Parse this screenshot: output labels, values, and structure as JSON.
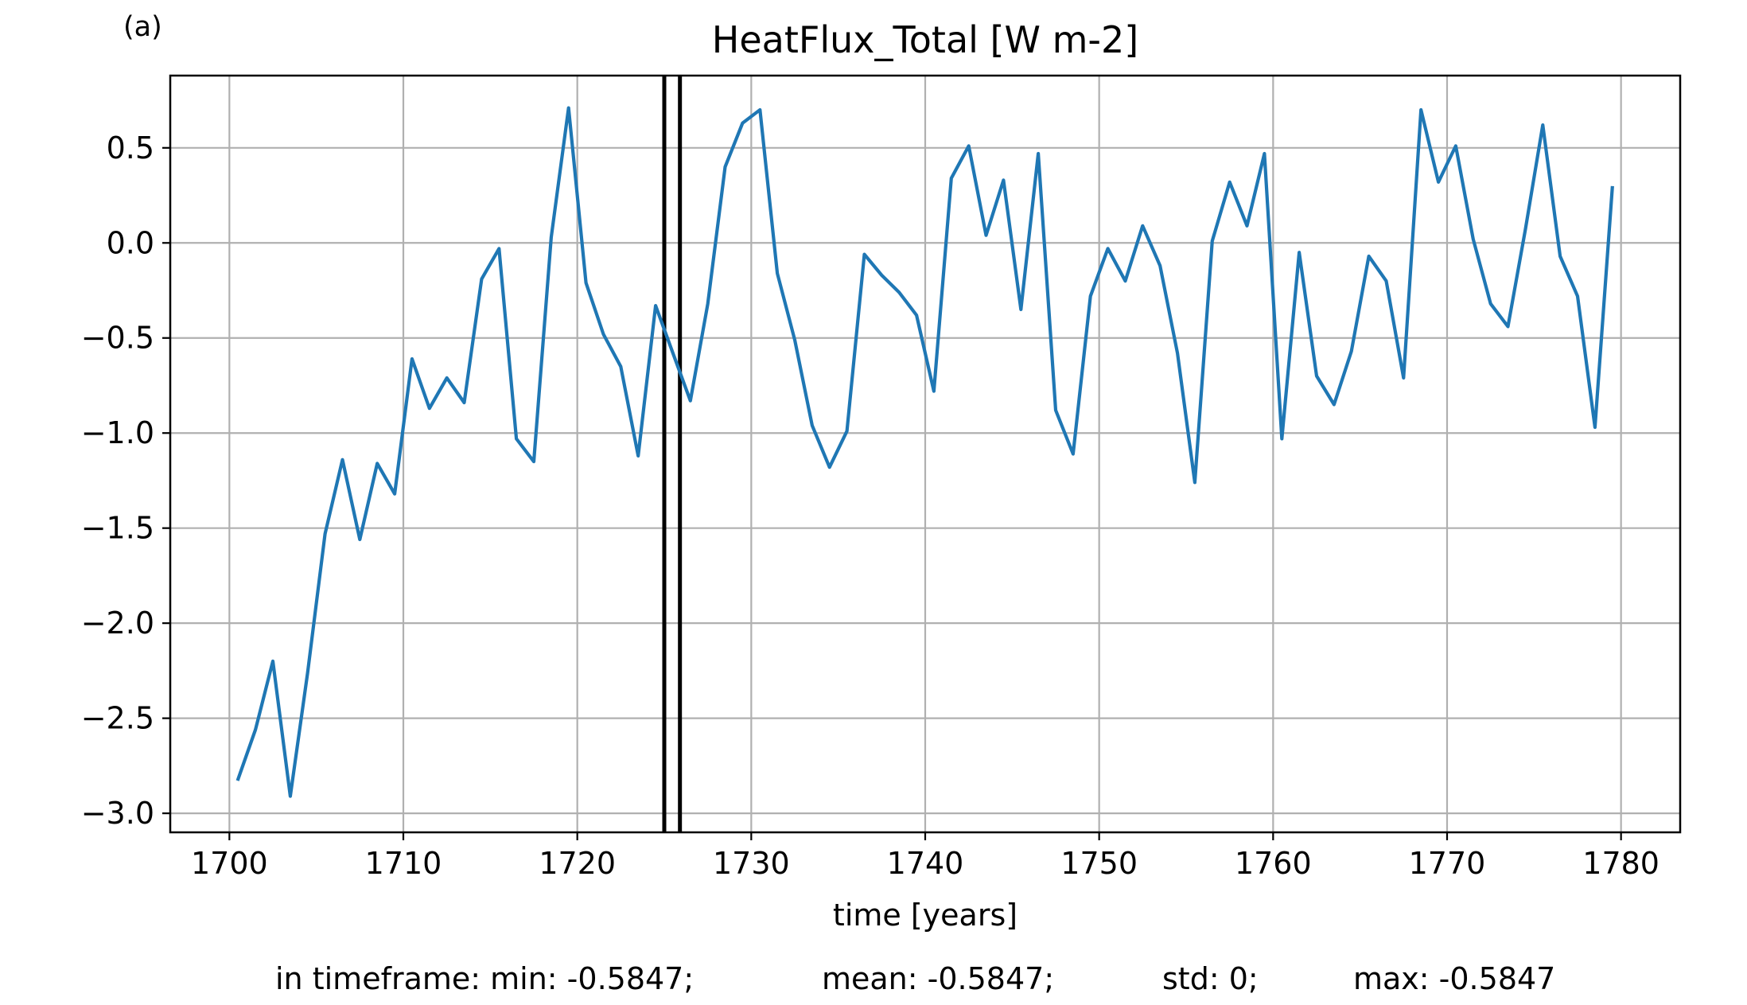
{
  "panel_label": "(a)",
  "stats": {
    "min": "in timeframe: min: -0.5847;",
    "mean": "mean: -0.5847;",
    "std": "std: 0;",
    "max": "max: -0.5847"
  },
  "colors": {
    "series": "#1f77b4",
    "grid": "#b0b0b0",
    "marker": "#000000"
  },
  "chart_data": {
    "type": "line",
    "title": "HeatFlux_Total [W m-2]",
    "xlabel": "time [years]",
    "ylabel": "",
    "xlim": [
      1696.6,
      1783.4
    ],
    "ylim": [
      -3.1,
      0.88
    ],
    "grid": true,
    "x_ticks": [
      1700,
      1710,
      1720,
      1730,
      1740,
      1750,
      1760,
      1770,
      1780
    ],
    "x_tick_labels": [
      "1700",
      "1710",
      "1720",
      "1730",
      "1740",
      "1750",
      "1760",
      "1770",
      "1780"
    ],
    "y_ticks": [
      0.5,
      0.0,
      -0.5,
      -1.0,
      -1.5,
      -2.0,
      -2.5,
      -3.0
    ],
    "y_tick_labels": [
      "0.5",
      "0.0",
      "−0.5",
      "−1.0",
      "−1.5",
      "−2.0",
      "−2.5",
      "−3.0"
    ],
    "vertical_lines": [
      1725.0,
      1725.9
    ],
    "series": [
      {
        "x": [
          1700.5,
          1701.5,
          1702.5,
          1703.5,
          1704.5,
          1705.5,
          1706.5,
          1707.5,
          1708.5,
          1709.5,
          1710.5,
          1711.5,
          1712.5,
          1713.5,
          1714.5,
          1715.5,
          1716.5,
          1717.5,
          1718.5,
          1719.5,
          1720.5,
          1721.5,
          1722.5,
          1723.5,
          1724.5,
          1725.5,
          1726.5,
          1727.5,
          1728.5,
          1729.5,
          1730.5,
          1731.5,
          1732.5,
          1733.5,
          1734.5,
          1735.5,
          1736.5,
          1737.5,
          1738.5,
          1739.5,
          1740.5,
          1741.5,
          1742.5,
          1743.5,
          1744.5,
          1745.5,
          1746.5,
          1747.5,
          1748.5,
          1749.5,
          1750.5,
          1751.5,
          1752.5,
          1753.5,
          1754.5,
          1755.5,
          1756.5,
          1757.5,
          1758.5,
          1759.5,
          1760.5,
          1761.5,
          1762.5,
          1763.5,
          1764.5,
          1765.5,
          1766.5,
          1767.5,
          1768.5,
          1769.5,
          1770.5,
          1771.5,
          1772.5,
          1773.5,
          1774.5,
          1775.5,
          1776.5,
          1777.5,
          1778.5,
          1779.5
        ],
        "values": [
          -2.82,
          -2.56,
          -2.2,
          -2.91,
          -2.26,
          -1.53,
          -1.14,
          -1.56,
          -1.16,
          -1.32,
          -0.61,
          -0.87,
          -0.71,
          -0.84,
          -0.19,
          -0.03,
          -1.03,
          -1.15,
          0.03,
          0.71,
          -0.21,
          -0.48,
          -0.65,
          -1.12,
          -0.33,
          -0.58,
          -0.83,
          -0.32,
          0.4,
          0.63,
          0.7,
          -0.16,
          -0.51,
          -0.96,
          -1.18,
          -0.99,
          -0.06,
          -0.17,
          -0.26,
          -0.38,
          -0.78,
          0.34,
          0.51,
          0.04,
          0.33,
          -0.35,
          0.47,
          -0.88,
          -1.11,
          -0.28,
          -0.03,
          -0.2,
          0.09,
          -0.12,
          -0.58,
          -1.26,
          0.01,
          0.32,
          0.09,
          0.47,
          -1.03,
          -0.05,
          -0.7,
          -0.85,
          -0.57,
          -0.07,
          -0.2,
          -0.71,
          0.7,
          0.32,
          0.51,
          0.02,
          -0.32,
          -0.44,
          0.07,
          0.62,
          -0.07,
          -0.28,
          -0.97,
          0.29
        ]
      }
    ]
  }
}
